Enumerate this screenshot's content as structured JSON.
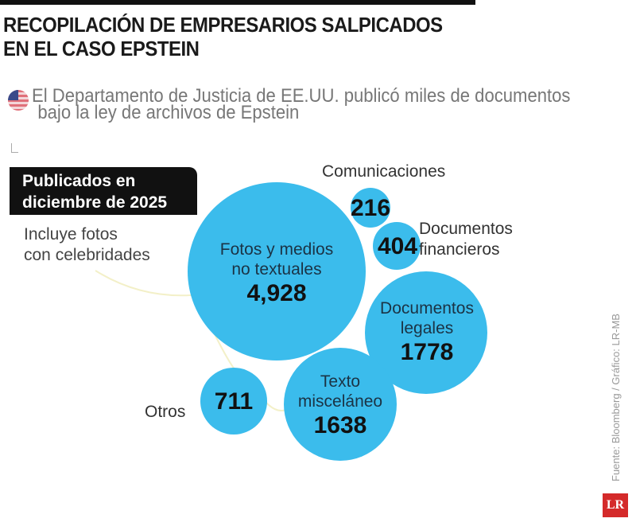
{
  "header": {
    "title_line1": "RECOPILACIÓN DE EMPRESARIOS SALPICADOS",
    "title_line2": "EN EL CASO EPSTEIN",
    "subtitle_line1": "El Departamento de Justicia de EE.UU. publicó miles de documentos",
    "subtitle_line2": "bajo la ley de archivos de Epstein",
    "flag_icon": "us-flag-icon"
  },
  "badge": {
    "line1": "Publicados en",
    "line2": "diciembre de 2025"
  },
  "note": {
    "line1": "Incluye fotos",
    "line2": "con celebridades"
  },
  "footer": {
    "source": "Fuente: Bloomberg / Gráfico: LR-MB",
    "logo": "LR"
  },
  "chart_data": {
    "type": "bubble",
    "bubble_color": "#3bbcec",
    "items": [
      {
        "label": "Fotos y medios no textuales",
        "label_line1": "Fotos y medios",
        "label_line2": "no textuales",
        "value": 4928,
        "value_text": "4,928"
      },
      {
        "label": "Comunicaciones",
        "value": 216,
        "value_text": "216"
      },
      {
        "label": "Documentos financieros",
        "label_line1": "Documentos",
        "label_line2": "financieros",
        "value": 404,
        "value_text": "404"
      },
      {
        "label": "Documentos legales",
        "label_line1": "Documentos",
        "label_line2": "legales",
        "value": 1778,
        "value_text": "1778"
      },
      {
        "label": "Texto misceláneo",
        "label_line1": "Texto",
        "label_line2": "misceláneo",
        "value": 1638,
        "value_text": "1638"
      },
      {
        "label": "Otros",
        "value": 711,
        "value_text": "711"
      }
    ]
  }
}
